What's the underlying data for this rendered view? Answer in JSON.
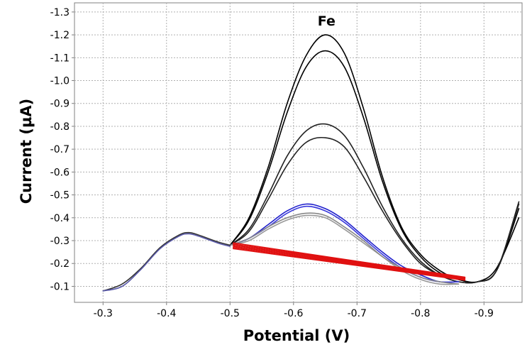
{
  "chart_data": {
    "type": "line",
    "xlabel": "Potential (V)",
    "ylabel": "Current (µA)",
    "xlim": [
      -0.255,
      -0.96
    ],
    "ylim": [
      -0.03,
      -1.34
    ],
    "x_ticks": [
      -0.3,
      -0.4,
      -0.5,
      -0.6,
      -0.7,
      -0.8,
      -0.9
    ],
    "x_tick_labels": [
      "-0.3",
      "-0.4",
      "-0.5",
      "-0.6",
      "-0.7",
      "-0.8",
      "-0.9"
    ],
    "y_ticks": [
      -0.1,
      -0.2,
      -0.3,
      -0.4,
      -0.5,
      -0.6,
      -0.7,
      -0.8,
      -0.9,
      -1.0,
      -1.1,
      -1.2,
      -1.3
    ],
    "y_tick_labels": [
      "-0.1",
      "-0.2",
      "-0.3",
      "-0.4",
      "-0.5",
      "-0.6",
      "-0.7",
      "-0.8",
      "-0.9",
      "-1.0",
      "-1.1",
      "-1.2",
      "-1.3"
    ],
    "grid": true,
    "annotations": [
      {
        "text": "Fe",
        "x": -0.652,
        "y": -1.24
      }
    ],
    "series": [
      {
        "color": "#000000",
        "x": [
          -0.5,
          -0.53,
          -0.56,
          -0.59,
          -0.62,
          -0.65,
          -0.68,
          -0.71,
          -0.74,
          -0.77,
          -0.8,
          -0.83,
          -0.86,
          -0.89,
          -0.92,
          -0.955
        ],
        "values": [
          -0.28,
          -0.4,
          -0.62,
          -0.9,
          -1.11,
          -1.2,
          -1.12,
          -0.88,
          -0.58,
          -0.36,
          -0.24,
          -0.17,
          -0.13,
          -0.12,
          -0.18,
          -0.4
        ]
      },
      {
        "color": "#000000",
        "x": [
          -0.5,
          -0.53,
          -0.56,
          -0.59,
          -0.62,
          -0.65,
          -0.68,
          -0.71,
          -0.74,
          -0.77,
          -0.8,
          -0.83,
          -0.86,
          -0.89,
          -0.92,
          -0.955
        ],
        "values": [
          -0.28,
          -0.39,
          -0.6,
          -0.86,
          -1.06,
          -1.13,
          -1.06,
          -0.84,
          -0.56,
          -0.35,
          -0.23,
          -0.16,
          -0.13,
          -0.12,
          -0.17,
          -0.44
        ]
      },
      {
        "color": "#222222",
        "x": [
          -0.5,
          -0.53,
          -0.56,
          -0.59,
          -0.62,
          -0.65,
          -0.68,
          -0.71,
          -0.74,
          -0.77,
          -0.8,
          -0.83,
          -0.86,
          -0.89,
          -0.92,
          -0.955
        ],
        "values": [
          -0.28,
          -0.35,
          -0.5,
          -0.67,
          -0.78,
          -0.81,
          -0.76,
          -0.62,
          -0.45,
          -0.31,
          -0.21,
          -0.15,
          -0.12,
          -0.12,
          -0.17,
          -0.46
        ]
      },
      {
        "color": "#222222",
        "x": [
          -0.5,
          -0.53,
          -0.56,
          -0.59,
          -0.62,
          -0.65,
          -0.68,
          -0.71,
          -0.74,
          -0.77,
          -0.8,
          -0.83,
          -0.86,
          -0.89,
          -0.92,
          -0.955
        ],
        "values": [
          -0.28,
          -0.34,
          -0.48,
          -0.63,
          -0.73,
          -0.75,
          -0.71,
          -0.58,
          -0.43,
          -0.3,
          -0.2,
          -0.15,
          -0.12,
          -0.12,
          -0.17,
          -0.47
        ]
      },
      {
        "color": "#1f1fcc",
        "x": [
          -0.5,
          -0.53,
          -0.56,
          -0.59,
          -0.62,
          -0.65,
          -0.68,
          -0.71,
          -0.74,
          -0.77,
          -0.8,
          -0.83,
          -0.86
        ],
        "values": [
          -0.28,
          -0.31,
          -0.37,
          -0.43,
          -0.46,
          -0.44,
          -0.39,
          -0.32,
          -0.25,
          -0.19,
          -0.15,
          -0.12,
          -0.12
        ]
      },
      {
        "color": "#3a3add",
        "x": [
          -0.5,
          -0.53,
          -0.56,
          -0.59,
          -0.62,
          -0.65,
          -0.68,
          -0.71,
          -0.74,
          -0.77,
          -0.8,
          -0.83,
          -0.86
        ],
        "values": [
          -0.28,
          -0.31,
          -0.36,
          -0.42,
          -0.45,
          -0.43,
          -0.38,
          -0.31,
          -0.24,
          -0.18,
          -0.14,
          -0.12,
          -0.12
        ]
      },
      {
        "color": "#999999",
        "x": [
          -0.5,
          -0.53,
          -0.56,
          -0.59,
          -0.62,
          -0.65,
          -0.68,
          -0.71,
          -0.74,
          -0.77,
          -0.8,
          -0.83,
          -0.86
        ],
        "values": [
          -0.28,
          -0.3,
          -0.35,
          -0.39,
          -0.41,
          -0.4,
          -0.35,
          -0.29,
          -0.23,
          -0.17,
          -0.13,
          -0.11,
          -0.11
        ]
      },
      {
        "color": "#888888",
        "x": [
          -0.5,
          -0.53,
          -0.56,
          -0.59,
          -0.62,
          -0.65,
          -0.68,
          -0.71,
          -0.74,
          -0.77,
          -0.8,
          -0.83,
          -0.86
        ],
        "values": [
          -0.28,
          -0.31,
          -0.36,
          -0.4,
          -0.42,
          -0.41,
          -0.36,
          -0.3,
          -0.23,
          -0.18,
          -0.14,
          -0.12,
          -0.11
        ]
      },
      {
        "color": "#e01010",
        "x": [
          -0.505,
          -0.87
        ],
        "values": [
          -0.265,
          -0.127
        ]
      },
      {
        "color": "#e01010",
        "x": [
          -0.505,
          -0.87
        ],
        "values": [
          -0.27,
          -0.13
        ]
      },
      {
        "color": "#e01010",
        "x": [
          -0.505,
          -0.87
        ],
        "values": [
          -0.275,
          -0.133
        ]
      },
      {
        "color": "#e01010",
        "x": [
          -0.505,
          -0.87
        ],
        "values": [
          -0.28,
          -0.136
        ]
      },
      {
        "color": "#e01010",
        "x": [
          -0.505,
          -0.87
        ],
        "values": [
          -0.285,
          -0.138
        ]
      },
      {
        "color": "#e01010",
        "x": [
          -0.505,
          -0.87
        ],
        "values": [
          -0.29,
          -0.14
        ]
      },
      {
        "color": "#333333",
        "x": [
          -0.3,
          -0.33,
          -0.36,
          -0.39,
          -0.42,
          -0.435,
          -0.45,
          -0.48,
          -0.5
        ],
        "values": [
          -0.08,
          -0.11,
          -0.18,
          -0.27,
          -0.325,
          -0.335,
          -0.325,
          -0.295,
          -0.28
        ]
      },
      {
        "color": "#5a5aaa",
        "x": [
          -0.3,
          -0.33,
          -0.36,
          -0.39,
          -0.42,
          -0.435,
          -0.45,
          -0.48,
          -0.5
        ],
        "values": [
          -0.08,
          -0.1,
          -0.175,
          -0.265,
          -0.32,
          -0.33,
          -0.32,
          -0.29,
          -0.275
        ]
      }
    ]
  }
}
